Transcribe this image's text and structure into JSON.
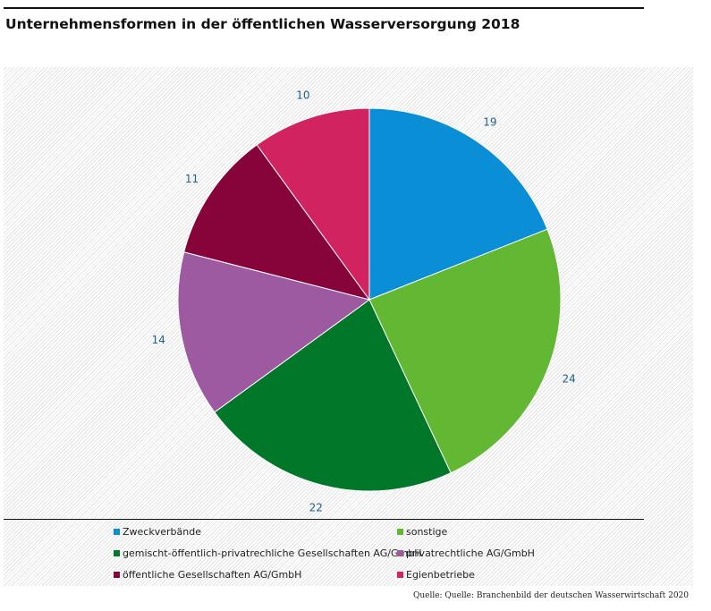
{
  "chart_data": {
    "type": "pie",
    "title": "Unternehmensformen in der öffentlichen Wasserversorgung 2018",
    "categories": [
      "Zweckverbände",
      "sonstige",
      "gemischt-öffentlich-privatrechliche Gesellschaften AG/GmbH",
      "privatrechtliche AG/GmbH",
      "öffentliche Gesellschaften AG/GmbH",
      "Egienbetriebe"
    ],
    "values": [
      19,
      24,
      22,
      14,
      11,
      10
    ],
    "colors": [
      "#0a8fd6",
      "#62b832",
      "#017729",
      "#9e5aa0",
      "#860439",
      "#d02360"
    ],
    "data_label_color": "#1f5f8b",
    "legend_position": "bottom",
    "start_angle": "top, clockwise"
  },
  "source": "Quelle: Quelle: Branchenbild der deutschen Wasserwirtschaft 2020"
}
